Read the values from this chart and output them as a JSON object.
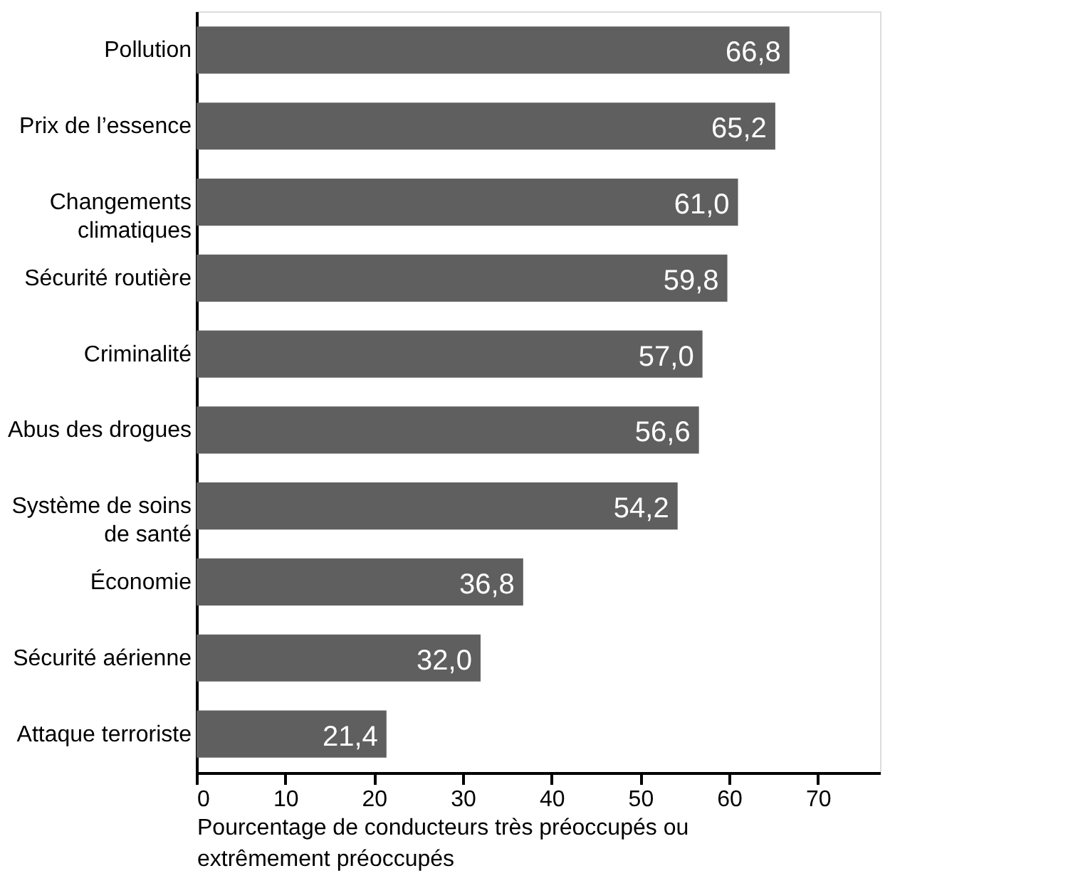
{
  "chart_data": {
    "type": "bar",
    "orientation": "horizontal",
    "categories": [
      "Pollution",
      "Prix de l’essence",
      "Changements\nclimatiques",
      "Sécurité routière",
      "Criminalité",
      "Abus des drogues",
      "Système de soins\nde santé",
      "Économie",
      "Sécurité aérienne",
      "Attaque terroriste"
    ],
    "values": [
      66.8,
      65.2,
      61.0,
      59.8,
      57.0,
      56.6,
      54.2,
      36.8,
      32.0,
      21.4
    ],
    "value_labels": [
      "66,8",
      "65,2",
      "61,0",
      "59,8",
      "57,0",
      "56,6",
      "54,2",
      "36,8",
      "32,0",
      "21,4"
    ],
    "color": "#5f5f5f",
    "xlabel": "Pourcentage de conducteurs très préoccupés ou\nextrêmement préoccupés",
    "xlim": [
      0,
      77
    ],
    "xticks": [
      0,
      10,
      20,
      30,
      40,
      50,
      60,
      70
    ],
    "grid": false
  }
}
